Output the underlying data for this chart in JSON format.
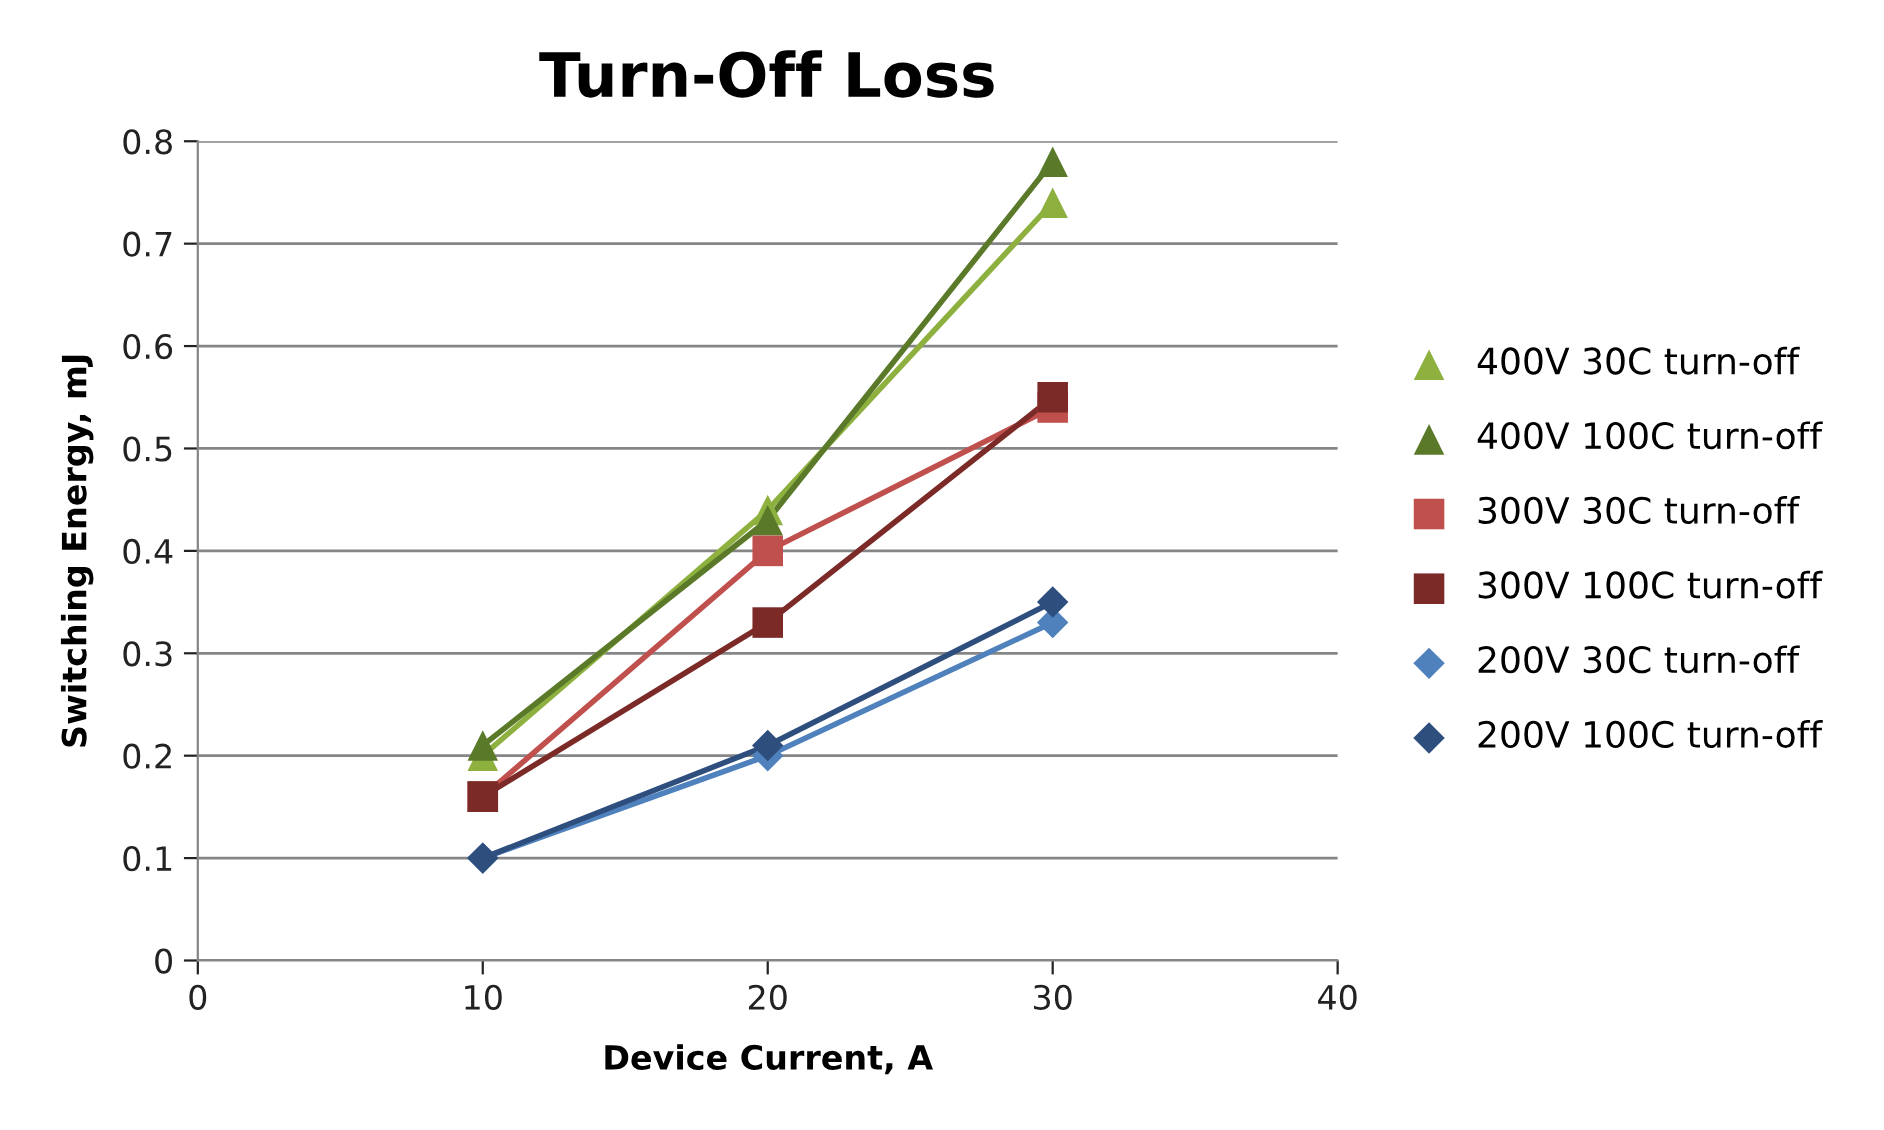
{
  "chart_data": {
    "type": "line",
    "title": "Turn-Off Loss",
    "xlabel": "Device Current, A",
    "ylabel": "Switching Energy, mJ",
    "x": [
      10,
      20,
      30
    ],
    "series": [
      {
        "name": "400V 30C turn-off",
        "color": "#8db03f",
        "marker": "triangle",
        "values": [
          0.2,
          0.44,
          0.74
        ]
      },
      {
        "name": "400V 100C turn-off",
        "color": "#5a7a29",
        "marker": "triangle",
        "values": [
          0.21,
          0.43,
          0.78
        ]
      },
      {
        "name": "300V 30C turn-off",
        "color": "#c0504d",
        "marker": "square",
        "values": [
          0.16,
          0.4,
          0.54
        ]
      },
      {
        "name": "300V 100C turn-off",
        "color": "#7b2a27",
        "marker": "square",
        "values": [
          0.16,
          0.33,
          0.55
        ]
      },
      {
        "name": "200V 30C turn-off",
        "color": "#4f81bd",
        "marker": "diamond",
        "values": [
          0.1,
          0.2,
          0.33
        ]
      },
      {
        "name": "200V 100C turn-off",
        "color": "#2e4e7e",
        "marker": "diamond",
        "values": [
          0.1,
          0.21,
          0.35
        ]
      }
    ],
    "xlim": [
      0,
      40
    ],
    "xticks": [
      0,
      10,
      20,
      30,
      40
    ],
    "ylim": [
      0,
      0.8
    ],
    "yticks": [
      0,
      0.1,
      0.2,
      0.3,
      0.4,
      0.5,
      0.6,
      0.7,
      0.8
    ],
    "grid": "y",
    "legend": "right",
    "line_style": "solid"
  }
}
